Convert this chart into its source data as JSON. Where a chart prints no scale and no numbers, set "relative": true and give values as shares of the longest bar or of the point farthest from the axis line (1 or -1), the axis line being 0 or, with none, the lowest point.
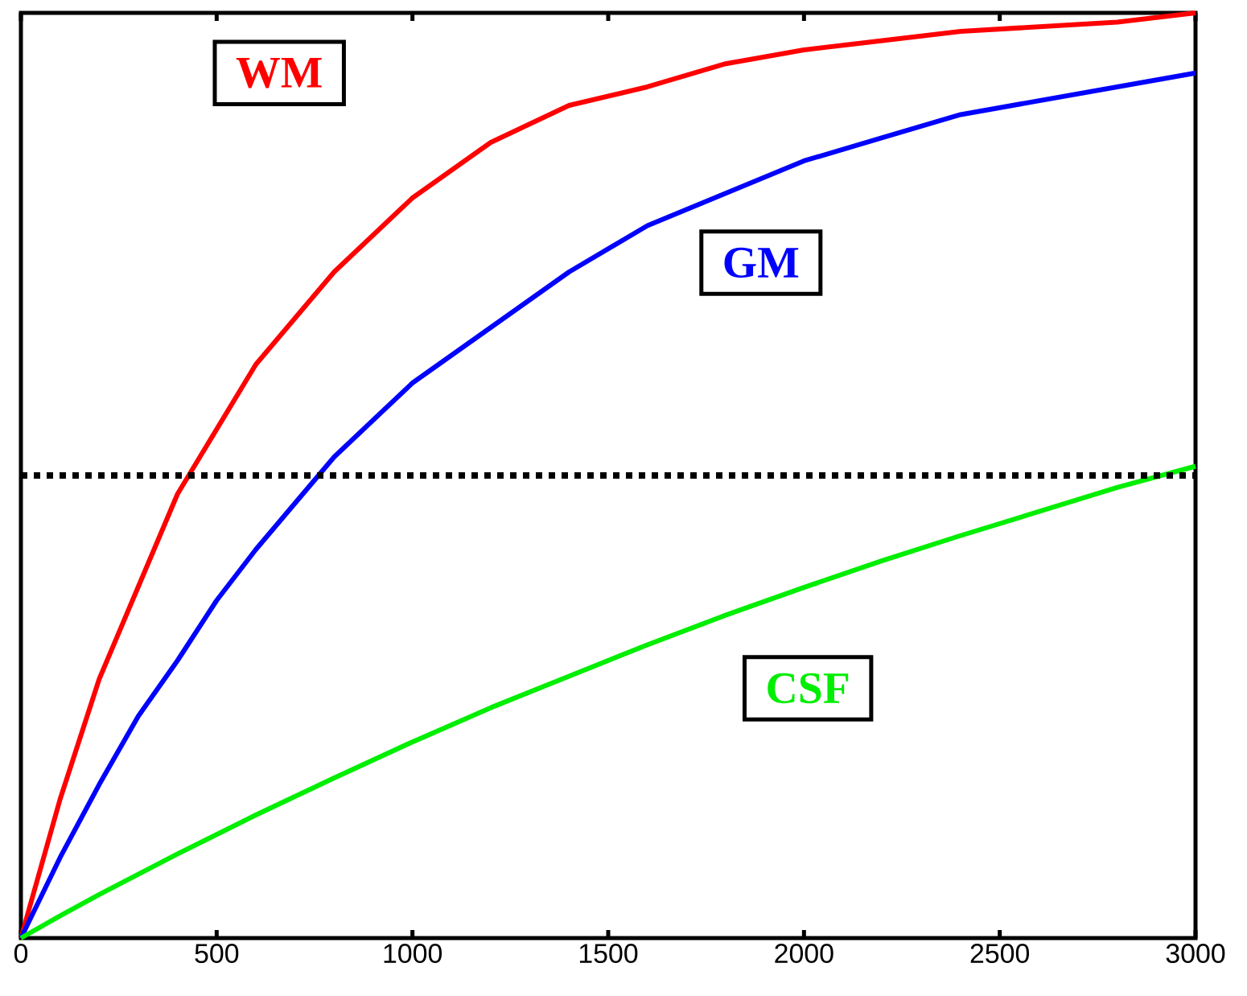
{
  "chart_data": {
    "type": "line",
    "relative": true,
    "x": [
      0,
      100,
      200,
      300,
      400,
      500,
      600,
      800,
      1000,
      1200,
      1400,
      1600,
      1800,
      2000,
      2200,
      2400,
      2600,
      2800,
      3000
    ],
    "xlim": [
      0,
      3000
    ],
    "xticks": [
      0,
      500,
      1000,
      1500,
      2000,
      2500,
      3000
    ],
    "series": [
      {
        "name": "WM",
        "color": "#ff0000",
        "values": [
          0,
          0.15,
          0.28,
          0.38,
          0.48,
          0.55,
          0.62,
          0.72,
          0.8,
          0.86,
          0.9,
          0.92,
          0.945,
          0.96,
          0.97,
          0.98,
          0.985,
          0.99,
          1.0
        ]
      },
      {
        "name": "GM",
        "color": "#0000ff",
        "values": [
          0,
          0.087,
          0.166,
          0.24,
          0.3,
          0.365,
          0.42,
          0.52,
          0.6,
          0.66,
          0.72,
          0.77,
          0.805,
          0.84,
          0.865,
          0.89,
          0.905,
          0.92,
          0.935
        ]
      },
      {
        "name": "CSF",
        "color": "#00ee00",
        "values": [
          0,
          0.024,
          0.047,
          0.069,
          0.091,
          0.112,
          0.133,
          0.173,
          0.212,
          0.249,
          0.283,
          0.317,
          0.349,
          0.379,
          0.408,
          0.435,
          0.461,
          0.487,
          0.51
        ]
      }
    ],
    "ref_lines": [
      {
        "axis": "y",
        "value": 0.5,
        "color": "#000000",
        "line_style": "dotted"
      }
    ],
    "legend": false,
    "grid": false,
    "marker": "none",
    "line_style": "solid"
  }
}
